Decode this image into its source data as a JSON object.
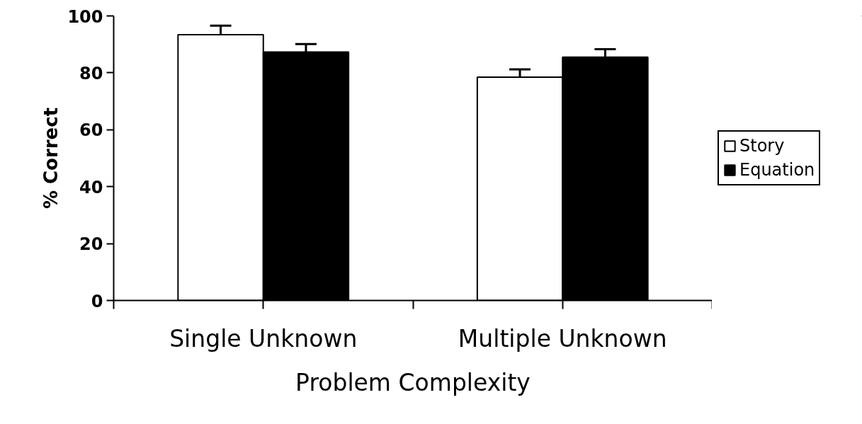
{
  "chart_data": {
    "type": "bar",
    "xlabel": "Problem Complexity",
    "ylabel": "% Correct",
    "categories": [
      "Single Unknown",
      "Multiple Unknown"
    ],
    "series": [
      {
        "name": "Story",
        "color": "#ffffff",
        "values": [
          93.4,
          78.5
        ],
        "errors": [
          3.2,
          2.7
        ]
      },
      {
        "name": "Equation",
        "color": "#000000",
        "values": [
          87.3,
          85.5
        ],
        "errors": [
          2.8,
          2.8
        ]
      }
    ],
    "ylim": [
      0,
      100
    ],
    "yticks": [
      0,
      20,
      40,
      60,
      80,
      100
    ],
    "grid": false,
    "legend": "right"
  }
}
